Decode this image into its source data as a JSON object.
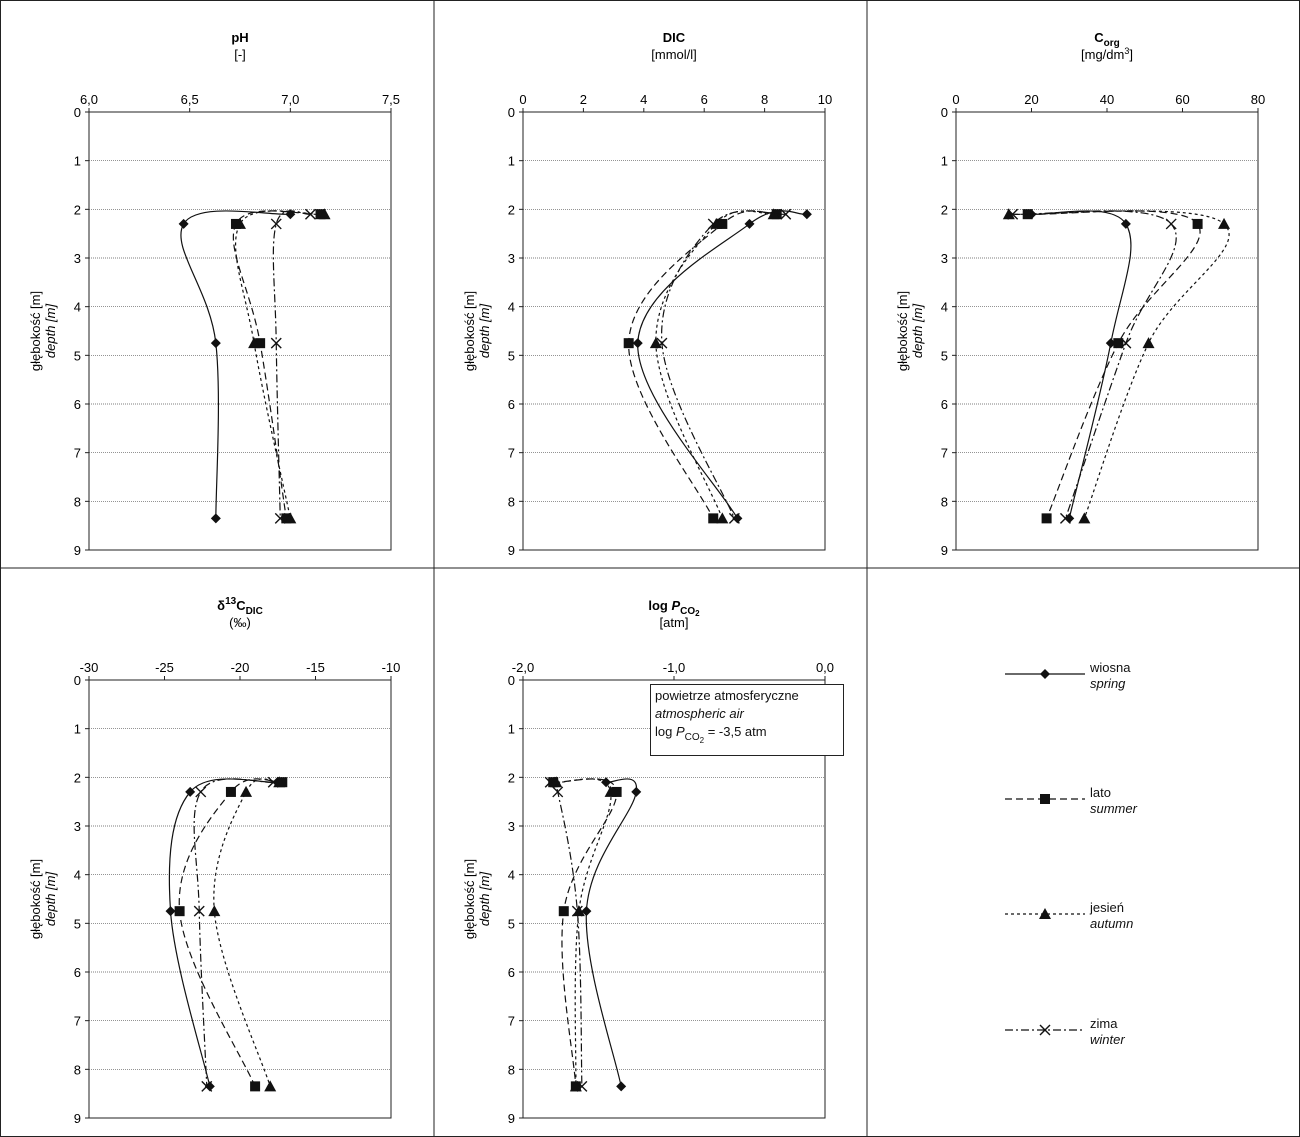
{
  "colors": {
    "line": "#111111",
    "grid": "#555555",
    "frame": "#222222"
  },
  "y_axis": {
    "label_pl": "głębokość [m]",
    "label_en": "depth [m]",
    "ticks": [
      "0",
      "1",
      "2",
      "3",
      "4",
      "5",
      "6",
      "7",
      "8",
      "9"
    ]
  },
  "legend": [
    {
      "key": "spring",
      "pl": "wiosna",
      "en": "spring",
      "marker": "diamond",
      "dash": "solid"
    },
    {
      "key": "summer",
      "pl": "lato",
      "en": "summer",
      "marker": "square",
      "dash": "dashed"
    },
    {
      "key": "autumn",
      "pl": "jesień",
      "en": "autumn",
      "marker": "triangle",
      "dash": "dotted"
    },
    {
      "key": "winter",
      "pl": "zima",
      "en": "winter",
      "marker": "x",
      "dash": "dashdot"
    }
  ],
  "air_box": {
    "line1": "powietrze atmosferyczne",
    "line2": "atmospheric air",
    "line3_prefix": "log ",
    "line3_var": "P",
    "line3_sub": "CO",
    "line3_sub2": "2",
    "line3_suffix": " = -3,5 atm"
  },
  "chart_data": [
    {
      "type": "line",
      "id": "ph",
      "title": "pH",
      "title_sub": "",
      "title_sup": "",
      "unit": "[-]",
      "xlim": [
        6.0,
        7.5
      ],
      "xticks": [
        "6,0",
        "6,5",
        "7,0",
        "7,5"
      ],
      "xtick_values": [
        6.0,
        6.5,
        7.0,
        7.5
      ],
      "ylim": [
        0,
        9
      ],
      "depths": [
        2.1,
        2.3,
        4.75,
        8.35
      ],
      "series": [
        {
          "key": "spring",
          "values": [
            7.0,
            6.47,
            6.63,
            6.63
          ]
        },
        {
          "key": "summer",
          "values": [
            7.15,
            6.73,
            6.85,
            6.98
          ]
        },
        {
          "key": "autumn",
          "values": [
            7.17,
            6.75,
            6.82,
            7.0
          ]
        },
        {
          "key": "winter",
          "values": [
            7.1,
            6.93,
            6.93,
            6.95
          ]
        }
      ]
    },
    {
      "type": "line",
      "id": "dic",
      "title": "DIC",
      "title_sub": "",
      "title_sup": "",
      "unit": "[mmol/l]",
      "xlim": [
        0,
        10
      ],
      "xticks": [
        "0",
        "2",
        "4",
        "6",
        "8",
        "10"
      ],
      "xtick_values": [
        0,
        2,
        4,
        6,
        8,
        10
      ],
      "ylim": [
        0,
        9
      ],
      "depths": [
        2.1,
        2.3,
        4.75,
        8.35
      ],
      "series": [
        {
          "key": "spring",
          "values": [
            9.4,
            7.5,
            3.8,
            7.1
          ]
        },
        {
          "key": "summer",
          "values": [
            8.4,
            6.6,
            3.5,
            6.3
          ]
        },
        {
          "key": "autumn",
          "values": [
            8.3,
            6.4,
            4.4,
            6.6
          ]
        },
        {
          "key": "winter",
          "values": [
            8.7,
            6.3,
            4.6,
            7.0
          ]
        }
      ]
    },
    {
      "type": "line",
      "id": "corg",
      "title": "C",
      "title_sub": "org",
      "title_sup": "",
      "unit": "[mg/dm",
      "unit_sup": "3",
      "unit_end": "]",
      "xlim": [
        0,
        80
      ],
      "xticks": [
        "0",
        "20",
        "40",
        "60",
        "80"
      ],
      "xtick_values": [
        0,
        20,
        40,
        60,
        80
      ],
      "ylim": [
        0,
        9
      ],
      "depths": [
        2.1,
        2.3,
        4.75,
        8.35
      ],
      "series": [
        {
          "key": "spring",
          "values": [
            20,
            45,
            41,
            30
          ]
        },
        {
          "key": "summer",
          "values": [
            19,
            64,
            43,
            24
          ]
        },
        {
          "key": "autumn",
          "values": [
            14,
            71,
            51,
            34
          ]
        },
        {
          "key": "winter",
          "values": [
            15,
            57,
            45,
            29
          ]
        }
      ]
    },
    {
      "type": "line",
      "id": "d13c",
      "title": "δ",
      "title_sup": "13",
      "title_main2": "C",
      "title_sub": "DIC",
      "unit": "(‰)",
      "xlim": [
        -30,
        -10
      ],
      "xticks": [
        "-30",
        "-25",
        "-20",
        "-15",
        "-10"
      ],
      "xtick_values": [
        -30,
        -25,
        -20,
        -15,
        -10
      ],
      "ylim": [
        0,
        9
      ],
      "depths": [
        2.1,
        2.3,
        4.75,
        8.35
      ],
      "series": [
        {
          "key": "spring",
          "values": [
            -17.5,
            -23.3,
            -24.6,
            -22.0
          ]
        },
        {
          "key": "summer",
          "values": [
            -17.2,
            -20.6,
            -24.0,
            -19.0
          ]
        },
        {
          "key": "autumn",
          "values": [
            -17.4,
            -19.6,
            -21.7,
            -18.0
          ]
        },
        {
          "key": "winter",
          "values": [
            -17.8,
            -22.6,
            -22.7,
            -22.2
          ]
        }
      ]
    },
    {
      "type": "line",
      "id": "pco2",
      "title": "log ",
      "title_var": "P",
      "title_sub": "CO",
      "title_sub2": "2",
      "unit": "[atm]",
      "xlim": [
        -2.0,
        0.0
      ],
      "xticks": [
        "-2,0",
        "-1,0",
        "0,0"
      ],
      "xtick_values": [
        -2.0,
        -1.0,
        0.0
      ],
      "ylim": [
        0,
        9
      ],
      "depths": [
        2.1,
        2.3,
        4.75,
        8.35
      ],
      "series": [
        {
          "key": "spring",
          "values": [
            -1.45,
            -1.25,
            -1.58,
            -1.35
          ]
        },
        {
          "key": "summer",
          "values": [
            -1.8,
            -1.38,
            -1.73,
            -1.65
          ]
        },
        {
          "key": "autumn",
          "values": [
            -1.78,
            -1.42,
            -1.63,
            -1.65
          ]
        },
        {
          "key": "winter",
          "values": [
            -1.82,
            -1.77,
            -1.64,
            -1.61
          ]
        }
      ]
    }
  ]
}
